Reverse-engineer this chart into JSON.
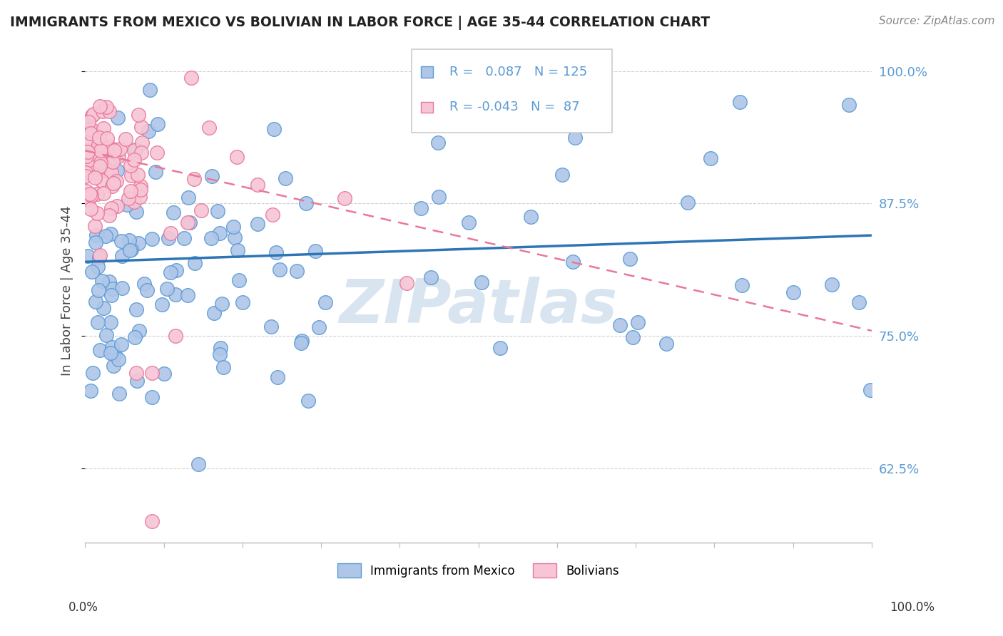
{
  "title": "IMMIGRANTS FROM MEXICO VS BOLIVIAN IN LABOR FORCE | AGE 35-44 CORRELATION CHART",
  "source": "Source: ZipAtlas.com",
  "ylabel": "In Labor Force | Age 35-44",
  "xlim": [
    0.0,
    1.0
  ],
  "ylim": [
    0.555,
    1.03
  ],
  "yticks": [
    0.625,
    0.75,
    0.875,
    1.0
  ],
  "ytick_labels": [
    "62.5%",
    "75.0%",
    "87.5%",
    "100.0%"
  ],
  "legend_r_mexico": "0.087",
  "legend_n_mexico": "125",
  "legend_r_bolivian": "-0.043",
  "legend_n_bolivian": "87",
  "mexico_color": "#aec6e8",
  "mexico_edge_color": "#5b9bd5",
  "bolivian_color": "#f7c5d5",
  "bolivian_edge_color": "#e8789a",
  "mexico_line_color": "#2e75b6",
  "bolivian_line_color": "#e8789a",
  "tick_label_color": "#5b9bd5",
  "watermark_color": "#d8e4f0",
  "background_color": "#ffffff",
  "grid_color": "#d0d0d0"
}
